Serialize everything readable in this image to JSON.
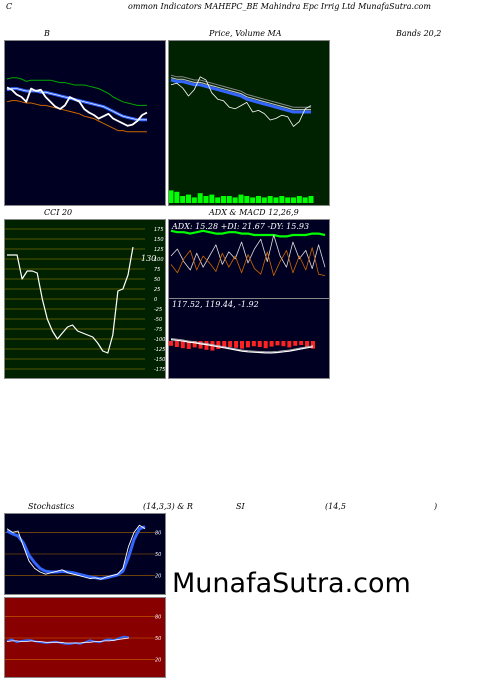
{
  "header": {
    "c": "C",
    "title": "ommon Indicators MAHEPC_BE Mahindra Epc Irrig Ltd MunafaSutra.com"
  },
  "row1": {
    "b_label": "B",
    "price_label": "Price,  Volume MA",
    "bands_label": "Bands 20,2"
  },
  "row2": {
    "cci_label": "CCI 20",
    "adx_label": "ADX   & MACD 12,26,9",
    "adx_values": "ADX: 15.28  +DI: 21.67 -DY: 15.93",
    "macd_values": "117.52,  119.44,  -1.92"
  },
  "row3": {
    "stoch_label": "Stochastics",
    "stoch_params": "(14,3,3) & R",
    "si": "SI",
    "rsi_params": "(14,5",
    "close_paren": ")"
  },
  "watermark": "MunafaSutra.com",
  "colors": {
    "navy": "#000022",
    "green_bg": "#002200",
    "red_bg": "#880000",
    "blue": "#3366ff",
    "orange": "#cc6600",
    "green": "#00aa00",
    "bright_green": "#00ff00"
  },
  "chart_data": [
    {
      "type": "line",
      "panel": "bollinger",
      "series": [
        {
          "values": [
            85,
            86,
            86,
            85,
            83,
            84,
            84,
            84,
            84,
            84,
            83,
            82,
            82,
            81,
            80,
            80,
            80,
            79,
            78,
            77,
            75,
            73,
            70,
            68,
            66,
            65,
            64,
            63,
            63,
            63
          ]
        },
        {
          "values": [
            76,
            77,
            77,
            76,
            75,
            75,
            75,
            74,
            74,
            73,
            72,
            71,
            70,
            69,
            68,
            67,
            66,
            65,
            64,
            63,
            62,
            60,
            58,
            56,
            54,
            53,
            52,
            51,
            51,
            51
          ]
        },
        {
          "values": [
            66,
            67,
            67,
            66,
            65,
            65,
            64,
            63,
            63,
            62,
            61,
            60,
            59,
            58,
            57,
            56,
            54,
            53,
            52,
            50,
            48,
            46,
            44,
            42,
            42,
            41,
            41,
            41,
            41,
            41
          ]
        },
        {
          "values": [
            78,
            76,
            72,
            70,
            66,
            77,
            75,
            76,
            70,
            66,
            62,
            60,
            63,
            70,
            68,
            66,
            60,
            57,
            55,
            52,
            54,
            56,
            52,
            50,
            48,
            46,
            47,
            50,
            55,
            57
          ]
        }
      ]
    },
    {
      "type": "line",
      "panel": "price_volume",
      "series": [
        {
          "values": [
            57,
            58,
            55,
            50,
            54,
            62,
            60,
            52,
            48,
            47,
            43,
            42,
            44,
            46,
            40,
            41,
            39,
            35,
            36,
            38,
            37,
            31,
            34,
            42,
            44
          ]
        },
        {
          "values": [
            60,
            59,
            59,
            58,
            57,
            57,
            56,
            55,
            54,
            53,
            52,
            51,
            50,
            48,
            47,
            46,
            45,
            44,
            43,
            42,
            41,
            40,
            40,
            40,
            40
          ]
        }
      ],
      "volume": [
        9,
        8,
        5,
        6,
        4,
        7,
        5,
        6,
        4,
        5,
        5,
        4,
        6,
        5,
        4,
        5,
        4,
        5,
        4,
        5,
        4,
        4,
        5,
        4,
        5
      ]
    },
    {
      "type": "line",
      "panel": "cci",
      "yticks": [
        175,
        150,
        125,
        100,
        75,
        50,
        25,
        0,
        -25,
        -50,
        -75,
        -100,
        -125,
        -150,
        -175
      ],
      "values": [
        110,
        110,
        110,
        50,
        70,
        70,
        65,
        0,
        -50,
        -80,
        -100,
        -85,
        -70,
        -65,
        -80,
        -85,
        -90,
        -95,
        -110,
        -130,
        -135,
        -90,
        20,
        25,
        60,
        130
      ],
      "last_label": "130"
    },
    {
      "type": "line",
      "panel": "adx",
      "series": [
        {
          "name": "ADX",
          "values": [
            18,
            17,
            17,
            16,
            17,
            18,
            17,
            16,
            16,
            17,
            17,
            16,
            16,
            15,
            15,
            15,
            15,
            14,
            14,
            15,
            15,
            15,
            16,
            16,
            15
          ]
        },
        {
          "name": "+DI",
          "values": [
            30,
            35,
            26,
            20,
            32,
            22,
            30,
            38,
            24,
            33,
            28,
            40,
            25,
            35,
            42,
            26,
            45,
            30,
            22,
            40,
            28,
            34,
            21,
            38,
            22
          ]
        },
        {
          "name": "-DY",
          "values": [
            24,
            18,
            28,
            34,
            20,
            30,
            25,
            19,
            32,
            22,
            30,
            18,
            31,
            21,
            17,
            33,
            16,
            26,
            34,
            18,
            30,
            20,
            36,
            17,
            16
          ]
        }
      ]
    },
    {
      "type": "bar",
      "panel": "macd",
      "values": [
        -1.2,
        -1.5,
        -1.8,
        -2.0,
        -1.6,
        -1.9,
        -2.2,
        -2.4,
        -2.0,
        -1.8,
        -1.5,
        -1.7,
        -1.9,
        -1.6,
        -1.3,
        -1.5,
        -1.8,
        -1.4,
        -1.1,
        -1.3,
        -1.6,
        -1.2,
        -1.0,
        -1.5,
        -1.92
      ],
      "line": [
        0.4,
        0.2,
        0.0,
        -0.3,
        -0.5,
        -0.8,
        -1.0,
        -1.3,
        -1.6,
        -1.9,
        -2.2,
        -2.5,
        -2.8,
        -3.0,
        -3.1,
        -3.2,
        -3.3,
        -3.3,
        -3.2,
        -3.0,
        -2.8,
        -2.5,
        -2.2,
        -1.9,
        -1.6
      ]
    },
    {
      "type": "line",
      "panel": "stochastics",
      "yticks": [
        80,
        50,
        20
      ],
      "series": [
        {
          "values": [
            85,
            80,
            82,
            60,
            40,
            30,
            25,
            22,
            24,
            26,
            28,
            24,
            22,
            20,
            18,
            16,
            17,
            15,
            18,
            20,
            22,
            30,
            60,
            80,
            90,
            85
          ]
        },
        {
          "values": [
            82,
            78,
            75,
            65,
            48,
            38,
            30,
            26,
            25,
            25,
            26,
            25,
            24,
            22,
            20,
            18,
            17,
            16,
            17,
            19,
            21,
            26,
            45,
            70,
            85,
            88
          ]
        }
      ]
    },
    {
      "type": "line",
      "panel": "rsi",
      "yticks": [
        80,
        50,
        20
      ],
      "series": [
        {
          "values": [
            46,
            48,
            44,
            46,
            47,
            47,
            45,
            44,
            43,
            44,
            45,
            43,
            42,
            42,
            43,
            42,
            44,
            47,
            45,
            44,
            47,
            48,
            47,
            50,
            52,
            51
          ]
        },
        {
          "values": [
            45,
            46,
            46,
            45,
            45,
            46,
            45,
            45,
            44,
            44,
            44,
            44,
            43,
            43,
            43,
            43,
            44,
            44,
            45,
            45,
            46,
            46,
            47,
            48,
            49,
            50
          ]
        }
      ]
    }
  ]
}
